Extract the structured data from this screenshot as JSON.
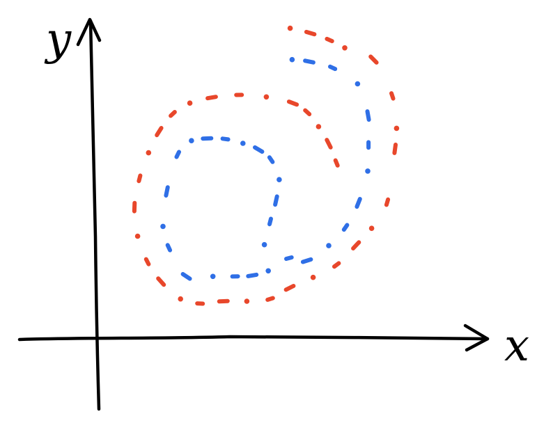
{
  "chart_data": {
    "type": "scatter",
    "title": "",
    "xlabel": "x",
    "ylabel": "y",
    "grid": false,
    "legend": "none",
    "ticks": "none",
    "xlim": [
      0,
      100
    ],
    "ylim": [
      0,
      100
    ],
    "series": [
      {
        "color": "#e8472b",
        "style": "dashed-dots",
        "points": [
          [
            50.1,
            95.2
          ],
          [
            55.3,
            93.7
          ],
          [
            60.2,
            91.6
          ],
          [
            64.1,
            89.2
          ],
          [
            71.5,
            85.6
          ],
          [
            76.3,
            74.5
          ],
          [
            77.4,
            64.6
          ],
          [
            77.0,
            58.3
          ],
          [
            75.0,
            42.0
          ],
          [
            71.0,
            34.0
          ],
          [
            67.0,
            28.8
          ],
          [
            62.0,
            22.8
          ],
          [
            56.0,
            19.0
          ],
          [
            50.0,
            15.8
          ],
          [
            45.0,
            12.4
          ],
          [
            39.0,
            11.7
          ],
          [
            33.0,
            11.7
          ],
          [
            27.0,
            11.0
          ],
          [
            22.0,
            12.4
          ],
          [
            17.0,
            17.7
          ],
          [
            13.5,
            23.8
          ],
          [
            11.0,
            31.6
          ],
          [
            10.2,
            40.5
          ],
          [
            11.5,
            49.3
          ],
          [
            13.8,
            57.1
          ],
          [
            16.5,
            63.6
          ],
          [
            20.0,
            69.0
          ],
          [
            24.4,
            72.3
          ],
          [
            30.0,
            74.0
          ],
          [
            37.0,
            74.8
          ],
          [
            44.0,
            74.2
          ],
          [
            50.8,
            72.3
          ],
          [
            54.5,
            69.5
          ],
          [
            57.4,
            65.1
          ],
          [
            60.0,
            59.9
          ],
          [
            62.0,
            54.0
          ]
        ]
      },
      {
        "color": "#2f6fe6",
        "style": "dashed-dots",
        "points": [
          [
            50.6,
            85.6
          ],
          [
            55.0,
            85.0
          ],
          [
            61.0,
            83.1
          ],
          [
            67.4,
            78.2
          ],
          [
            70.1,
            68.5
          ],
          [
            70.2,
            59.5
          ],
          [
            70.0,
            51.5
          ],
          [
            67.6,
            41.8
          ],
          [
            64.3,
            34.3
          ],
          [
            60.0,
            28.7
          ],
          [
            54.4,
            24.1
          ],
          [
            49.8,
            24.9
          ],
          [
            44.5,
            21.0
          ],
          [
            40.4,
            19.6
          ],
          [
            36.0,
            19.3
          ],
          [
            30.3,
            19.3
          ],
          [
            23.5,
            19.3
          ],
          [
            19.0,
            28.1
          ],
          [
            17.5,
            34.6
          ],
          [
            18.5,
            45.3
          ],
          [
            21.3,
            56.6
          ],
          [
            24.8,
            60.8
          ],
          [
            28.8,
            61.5
          ],
          [
            33.5,
            61.3
          ],
          [
            38.0,
            60.0
          ],
          [
            42.0,
            58.1
          ],
          [
            45.2,
            55.0
          ],
          [
            47.3,
            48.9
          ],
          [
            46.5,
            42.5
          ],
          [
            45.0,
            36.1
          ],
          [
            43.5,
            29.0
          ]
        ]
      }
    ]
  },
  "axes": {
    "x_letter": "x",
    "y_letter": "y"
  }
}
